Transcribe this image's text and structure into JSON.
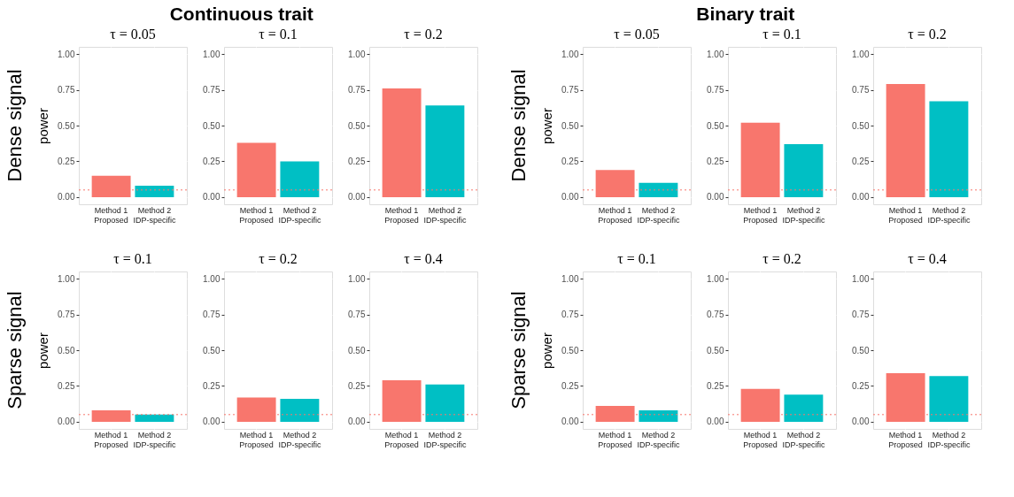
{
  "chart_data": [
    {
      "type": "bar",
      "title": "τ = 0.05",
      "ylabel": "power",
      "annotations": [
        "Continuous trait",
        "Dense signal"
      ],
      "categories": [
        "Method 1\nProposed",
        "Method 2\nIDP-specific"
      ],
      "values": [
        0.15,
        0.08
      ],
      "colors": [
        "#f8766d",
        "#00bfc4"
      ],
      "ylim": [
        -0.05,
        1.05
      ],
      "yticks": [
        {
          "value": 0,
          "label": "0.00"
        },
        {
          "value": 0.25,
          "label": "0.25"
        },
        {
          "value": 0.5,
          "label": "0.50"
        },
        {
          "value": 0.75,
          "label": "0.75"
        },
        {
          "value": 1,
          "label": "1.00"
        }
      ],
      "grid": true,
      "ref_lines": [
        {
          "axis": "y",
          "value": 0.05,
          "color": "#f8766d",
          "line_style": "dotted"
        }
      ]
    },
    {
      "type": "bar",
      "title": "τ = 0.1",
      "categories": [
        "Method 1\nProposed",
        "Method 2\nIDP-specific"
      ],
      "values": [
        0.38,
        0.25
      ],
      "colors": [
        "#f8766d",
        "#00bfc4"
      ],
      "ylim": [
        -0.05,
        1.05
      ],
      "yticks": [
        {
          "value": 0,
          "label": "0.00"
        },
        {
          "value": 0.25,
          "label": "0.25"
        },
        {
          "value": 0.5,
          "label": "0.50"
        },
        {
          "value": 0.75,
          "label": "0.75"
        },
        {
          "value": 1,
          "label": "1.00"
        }
      ],
      "grid": true,
      "ref_lines": [
        {
          "axis": "y",
          "value": 0.05,
          "color": "#f8766d",
          "line_style": "dotted"
        }
      ]
    },
    {
      "type": "bar",
      "title": "τ = 0.2",
      "categories": [
        "Method 1\nProposed",
        "Method 2\nIDP-specific"
      ],
      "values": [
        0.76,
        0.64
      ],
      "colors": [
        "#f8766d",
        "#00bfc4"
      ],
      "ylim": [
        -0.05,
        1.05
      ],
      "yticks": [
        {
          "value": 0,
          "label": "0.00"
        },
        {
          "value": 0.25,
          "label": "0.25"
        },
        {
          "value": 0.5,
          "label": "0.50"
        },
        {
          "value": 0.75,
          "label": "0.75"
        },
        {
          "value": 1,
          "label": "1.00"
        }
      ],
      "grid": true,
      "ref_lines": [
        {
          "axis": "y",
          "value": 0.05,
          "color": "#f8766d",
          "line_style": "dotted"
        }
      ]
    },
    {
      "type": "bar",
      "title": "τ = 0.05",
      "ylabel": "power",
      "annotations": [
        "Binary trait",
        "Dense signal"
      ],
      "categories": [
        "Method 1\nProposed",
        "Method 2\nIDP-specific"
      ],
      "values": [
        0.19,
        0.1
      ],
      "colors": [
        "#f8766d",
        "#00bfc4"
      ],
      "ylim": [
        -0.05,
        1.05
      ],
      "yticks": [
        {
          "value": 0,
          "label": "0.00"
        },
        {
          "value": 0.25,
          "label": "0.25"
        },
        {
          "value": 0.5,
          "label": "0.50"
        },
        {
          "value": 0.75,
          "label": "0.75"
        },
        {
          "value": 1,
          "label": "1.00"
        }
      ],
      "grid": true,
      "ref_lines": [
        {
          "axis": "y",
          "value": 0.05,
          "color": "#f8766d",
          "line_style": "dotted"
        }
      ]
    },
    {
      "type": "bar",
      "title": "τ = 0.1",
      "categories": [
        "Method 1\nProposed",
        "Method 2\nIDP-specific"
      ],
      "values": [
        0.52,
        0.37
      ],
      "colors": [
        "#f8766d",
        "#00bfc4"
      ],
      "ylim": [
        -0.05,
        1.05
      ],
      "yticks": [
        {
          "value": 0,
          "label": "0.00"
        },
        {
          "value": 0.25,
          "label": "0.25"
        },
        {
          "value": 0.5,
          "label": "0.50"
        },
        {
          "value": 0.75,
          "label": "0.75"
        },
        {
          "value": 1,
          "label": "1.00"
        }
      ],
      "grid": true,
      "ref_lines": [
        {
          "axis": "y",
          "value": 0.05,
          "color": "#f8766d",
          "line_style": "dotted"
        }
      ]
    },
    {
      "type": "bar",
      "title": "τ = 0.2",
      "categories": [
        "Method 1\nProposed",
        "Method 2\nIDP-specific"
      ],
      "values": [
        0.79,
        0.67
      ],
      "colors": [
        "#f8766d",
        "#00bfc4"
      ],
      "ylim": [
        -0.05,
        1.05
      ],
      "yticks": [
        {
          "value": 0,
          "label": "0.00"
        },
        {
          "value": 0.25,
          "label": "0.25"
        },
        {
          "value": 0.5,
          "label": "0.50"
        },
        {
          "value": 0.75,
          "label": "0.75"
        },
        {
          "value": 1,
          "label": "1.00"
        }
      ],
      "grid": true,
      "ref_lines": [
        {
          "axis": "y",
          "value": 0.05,
          "color": "#f8766d",
          "line_style": "dotted"
        }
      ]
    },
    {
      "type": "bar",
      "title": "τ = 0.1",
      "ylabel": "power",
      "annotations": [
        "Sparse signal"
      ],
      "categories": [
        "Method 1\nProposed",
        "Method 2\nIDP-specific"
      ],
      "values": [
        0.08,
        0.05
      ],
      "colors": [
        "#f8766d",
        "#00bfc4"
      ],
      "ylim": [
        -0.05,
        1.05
      ],
      "yticks": [
        {
          "value": 0,
          "label": "0.00"
        },
        {
          "value": 0.25,
          "label": "0.25"
        },
        {
          "value": 0.5,
          "label": "0.50"
        },
        {
          "value": 0.75,
          "label": "0.75"
        },
        {
          "value": 1,
          "label": "1.00"
        }
      ],
      "grid": true,
      "ref_lines": [
        {
          "axis": "y",
          "value": 0.05,
          "color": "#f8766d",
          "line_style": "dotted"
        }
      ]
    },
    {
      "type": "bar",
      "title": "τ = 0.2",
      "categories": [
        "Method 1\nProposed",
        "Method 2\nIDP-specific"
      ],
      "values": [
        0.17,
        0.16
      ],
      "colors": [
        "#f8766d",
        "#00bfc4"
      ],
      "ylim": [
        -0.05,
        1.05
      ],
      "yticks": [
        {
          "value": 0,
          "label": "0.00"
        },
        {
          "value": 0.25,
          "label": "0.25"
        },
        {
          "value": 0.5,
          "label": "0.50"
        },
        {
          "value": 0.75,
          "label": "0.75"
        },
        {
          "value": 1,
          "label": "1.00"
        }
      ],
      "grid": true,
      "ref_lines": [
        {
          "axis": "y",
          "value": 0.05,
          "color": "#f8766d",
          "line_style": "dotted"
        }
      ]
    },
    {
      "type": "bar",
      "title": "τ = 0.4",
      "categories": [
        "Method 1\nProposed",
        "Method 2\nIDP-specific"
      ],
      "values": [
        0.29,
        0.26
      ],
      "colors": [
        "#f8766d",
        "#00bfc4"
      ],
      "ylim": [
        -0.05,
        1.05
      ],
      "yticks": [
        {
          "value": 0,
          "label": "0.00"
        },
        {
          "value": 0.25,
          "label": "0.25"
        },
        {
          "value": 0.5,
          "label": "0.50"
        },
        {
          "value": 0.75,
          "label": "0.75"
        },
        {
          "value": 1,
          "label": "1.00"
        }
      ],
      "grid": true,
      "ref_lines": [
        {
          "axis": "y",
          "value": 0.05,
          "color": "#f8766d",
          "line_style": "dotted"
        }
      ]
    },
    {
      "type": "bar",
      "title": "τ = 0.1",
      "ylabel": "power",
      "annotations": [
        "Sparse signal"
      ],
      "categories": [
        "Method 1\nProposed",
        "Method 2\nIDP-specific"
      ],
      "values": [
        0.11,
        0.08
      ],
      "colors": [
        "#f8766d",
        "#00bfc4"
      ],
      "ylim": [
        -0.05,
        1.05
      ],
      "yticks": [
        {
          "value": 0,
          "label": "0.00"
        },
        {
          "value": 0.25,
          "label": "0.25"
        },
        {
          "value": 0.5,
          "label": "0.50"
        },
        {
          "value": 0.75,
          "label": "0.75"
        },
        {
          "value": 1,
          "label": "1.00"
        }
      ],
      "grid": true,
      "ref_lines": [
        {
          "axis": "y",
          "value": 0.05,
          "color": "#f8766d",
          "line_style": "dotted"
        }
      ]
    },
    {
      "type": "bar",
      "title": "τ = 0.2",
      "categories": [
        "Method 1\nProposed",
        "Method 2\nIDP-specific"
      ],
      "values": [
        0.23,
        0.19
      ],
      "colors": [
        "#f8766d",
        "#00bfc4"
      ],
      "ylim": [
        -0.05,
        1.05
      ],
      "yticks": [
        {
          "value": 0,
          "label": "0.00"
        },
        {
          "value": 0.25,
          "label": "0.25"
        },
        {
          "value": 0.5,
          "label": "0.50"
        },
        {
          "value": 0.75,
          "label": "0.75"
        },
        {
          "value": 1,
          "label": "1.00"
        }
      ],
      "grid": true,
      "ref_lines": [
        {
          "axis": "y",
          "value": 0.05,
          "color": "#f8766d",
          "line_style": "dotted"
        }
      ]
    },
    {
      "type": "bar",
      "title": "τ = 0.4",
      "categories": [
        "Method 1\nProposed",
        "Method 2\nIDP-specific"
      ],
      "values": [
        0.34,
        0.32
      ],
      "colors": [
        "#f8766d",
        "#00bfc4"
      ],
      "ylim": [
        -0.05,
        1.05
      ],
      "yticks": [
        {
          "value": 0,
          "label": "0.00"
        },
        {
          "value": 0.25,
          "label": "0.25"
        },
        {
          "value": 0.5,
          "label": "0.50"
        },
        {
          "value": 0.75,
          "label": "0.75"
        },
        {
          "value": 1,
          "label": "1.00"
        }
      ],
      "grid": true,
      "ref_lines": [
        {
          "axis": "y",
          "value": 0.05,
          "color": "#f8766d",
          "line_style": "dotted"
        }
      ]
    }
  ]
}
